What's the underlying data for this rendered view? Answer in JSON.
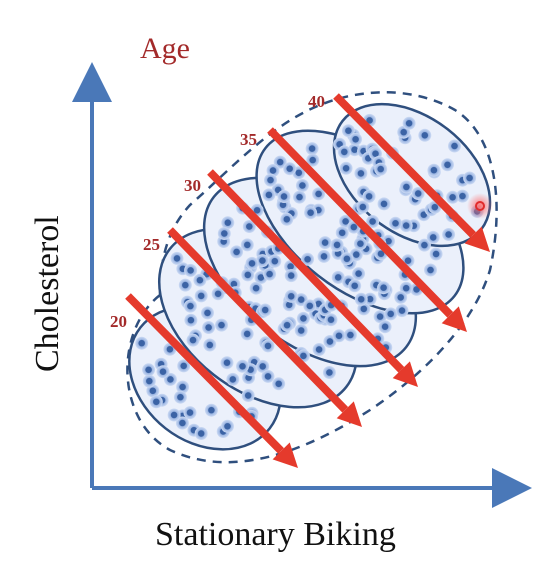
{
  "title": "Age",
  "x_axis_label": "Stationary Biking",
  "y_axis_label": "Cholesterol",
  "group_labels": [
    "20",
    "25",
    "30",
    "35",
    "40"
  ],
  "colors": {
    "axis": "#4a78b8",
    "title": "#a32a2a",
    "group_label": "#a32a2a",
    "arrow": "#e53a2c",
    "ellipse_stroke": "#2f4f7e",
    "ellipse_fill": "#ebf0fb",
    "dot_core": "#3b63a5",
    "dot_halo": "#9bb5e2"
  }
}
